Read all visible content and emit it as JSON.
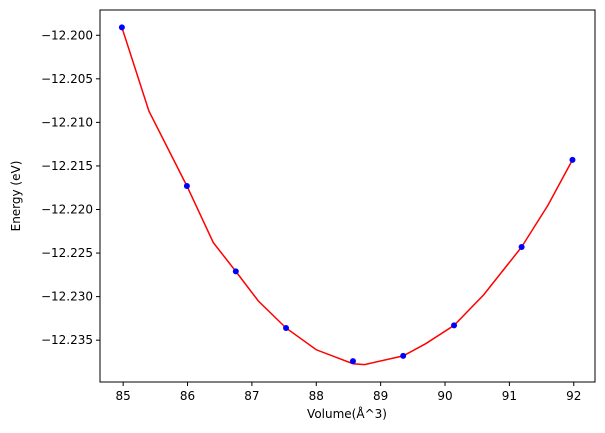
{
  "chart_data": {
    "type": "scatter",
    "xlabel": "Volume(Å^3)",
    "ylabel": "Energy (eV)",
    "xlim": [
      84.64,
      92.33
    ],
    "ylim": [
      -12.2398,
      -12.1971
    ],
    "xticks": [
      85,
      86,
      87,
      88,
      89,
      90,
      91,
      92
    ],
    "yticks": [
      {
        "value": -12.2,
        "label": "−12.200"
      },
      {
        "value": -12.205,
        "label": "−12.205"
      },
      {
        "value": -12.21,
        "label": "−12.210"
      },
      {
        "value": -12.215,
        "label": "−12.215"
      },
      {
        "value": -12.22,
        "label": "−12.220"
      },
      {
        "value": -12.225,
        "label": "−12.225"
      },
      {
        "value": -12.23,
        "label": "−12.230"
      },
      {
        "value": -12.235,
        "label": "−12.235"
      }
    ],
    "series": [
      {
        "kind": "line",
        "color": "#ff0000",
        "x": [
          84.98,
          85.4,
          85.99,
          86.4,
          86.75,
          87.1,
          87.53,
          88.0,
          88.57,
          88.75,
          89.35,
          89.7,
          90.14,
          90.6,
          91.19,
          91.6,
          91.98
        ],
        "values": [
          -12.1991,
          -12.2087,
          -12.2173,
          -12.2238,
          -12.2271,
          -12.2305,
          -12.2336,
          -12.2361,
          -12.2377,
          -12.2378,
          -12.2368,
          -12.2354,
          -12.2333,
          -12.2298,
          -12.2243,
          -12.2195,
          -12.2143
        ]
      },
      {
        "kind": "points",
        "color": "#0000ff",
        "x": [
          84.98,
          85.99,
          86.75,
          87.53,
          88.57,
          89.35,
          90.14,
          91.19,
          91.98
        ],
        "values": [
          -12.1991,
          -12.2173,
          -12.2271,
          -12.2336,
          -12.2374,
          -12.2368,
          -12.2333,
          -12.2243,
          -12.2143
        ]
      }
    ]
  }
}
